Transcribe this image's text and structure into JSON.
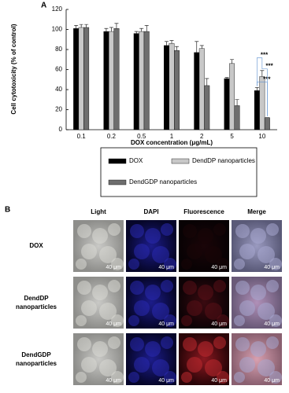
{
  "panel_labels": [
    "A",
    "B"
  ],
  "chart_data": {
    "type": "bar",
    "y_label": "Cell cytotoxicity (% of control)",
    "x_label": "DOX concentration (μg/mL)",
    "categories": [
      "0.1",
      "0.2",
      "0.5",
      "1",
      "2",
      "5",
      "10"
    ],
    "series": [
      {
        "name": "DOX",
        "color": "#000000",
        "values": [
          101,
          98,
          96,
          84,
          77,
          51,
          39
        ],
        "errors": [
          3,
          3,
          2,
          4,
          11,
          1,
          3
        ]
      },
      {
        "name": "DendDP nanoparticles",
        "color": "#c8c8c8",
        "values": [
          102,
          98,
          98,
          86,
          81,
          66,
          53
        ],
        "errors": [
          3,
          4,
          3,
          3,
          3,
          4,
          6
        ]
      },
      {
        "name": "DendGDP nanoparticles",
        "color": "#6e6e6e",
        "values": [
          102,
          101,
          98,
          79,
          44,
          24,
          12
        ],
        "errors": [
          3,
          5,
          6,
          4,
          7,
          6,
          0
        ]
      }
    ],
    "ylim": [
      0,
      120
    ],
    "yticks": [
      0,
      20,
      40,
      60,
      80,
      100,
      120
    ],
    "annotations": [
      "***",
      "***",
      "***"
    ]
  },
  "panel_b": {
    "columns": [
      "Light",
      "DAPI",
      "Fluorescence",
      "Merge"
    ],
    "rows": [
      "DOX",
      "DendDP nanoparticles",
      "DendGDP nanoparticles"
    ],
    "scale_bar": "40 μm"
  }
}
